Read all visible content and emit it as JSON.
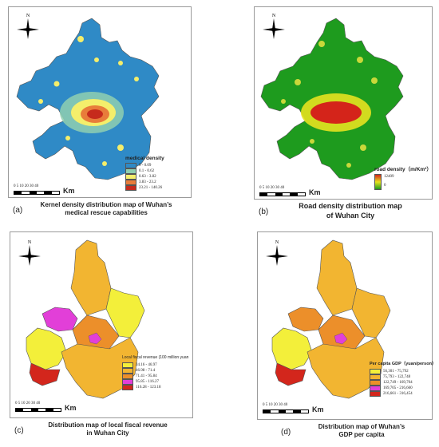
{
  "compass": {
    "north_label": "N"
  },
  "scale": {
    "ticks": "0 5 10 20 30 40",
    "unit": "Km"
  },
  "panel_a": {
    "letter": "(a)",
    "caption_line1": "Kernel density distribution map of Wuhan’s",
    "caption_line2": "medical rescue capabilities",
    "legend_title": "medical density",
    "legend": [
      {
        "label": "0 - 0.09",
        "color": "#2f8ac6"
      },
      {
        "label": "0.1 - 0.62",
        "color": "#8fcfb0"
      },
      {
        "label": "0.63 - 3.82",
        "color": "#f4ee6b"
      },
      {
        "label": "3.83 - 23.2",
        "color": "#e87c3a"
      },
      {
        "label": "23.21 - 140.26",
        "color": "#c62a1c"
      }
    ]
  },
  "panel_b": {
    "letter": "(b)",
    "caption_line1": "Road density distribution map",
    "caption_line2": "of Wuhan City",
    "legend_title": "road density（m/Km²）",
    "legend_high": "12409",
    "legend_low": "0",
    "colors": {
      "low": "#1e9b1e",
      "mid": "#e6e21f",
      "high": "#d4241a"
    }
  },
  "panel_c": {
    "letter": "(c)",
    "caption_line1": "Distribution map of local fiscal revenue",
    "caption_line2": "in Wuhan City",
    "legend_title": "Local fiscal revenue (100 million yuan",
    "legend": [
      {
        "label": "34.16 - 46.97",
        "color": "#f3ef3a"
      },
      {
        "label": "46.98 - 71.4",
        "color": "#f2b531"
      },
      {
        "label": "71.41 - 95.84",
        "color": "#ec8f2a"
      },
      {
        "label": "95.85 - 116.27",
        "color": "#e23fd8"
      },
      {
        "label": "116.28 - 123.18",
        "color": "#d3261c"
      }
    ]
  },
  "panel_d": {
    "letter": "(d)",
    "caption_line1": "Distribution map of Wuhan’s",
    "caption_line2": "GDP per capita",
    "legend_title": "Per capita GDP（yuan/person）",
    "legend": [
      {
        "label": "56,301 - 75,792",
        "color": "#f3ef3a"
      },
      {
        "label": "75,793 - 122,748",
        "color": "#f2b531"
      },
      {
        "label": "122,749 - 169,704",
        "color": "#ec8f2a"
      },
      {
        "label": "169,705 - 216,660",
        "color": "#e23fd8"
      },
      {
        "label": "216,661 - 316,454",
        "color": "#d3261c"
      }
    ]
  }
}
